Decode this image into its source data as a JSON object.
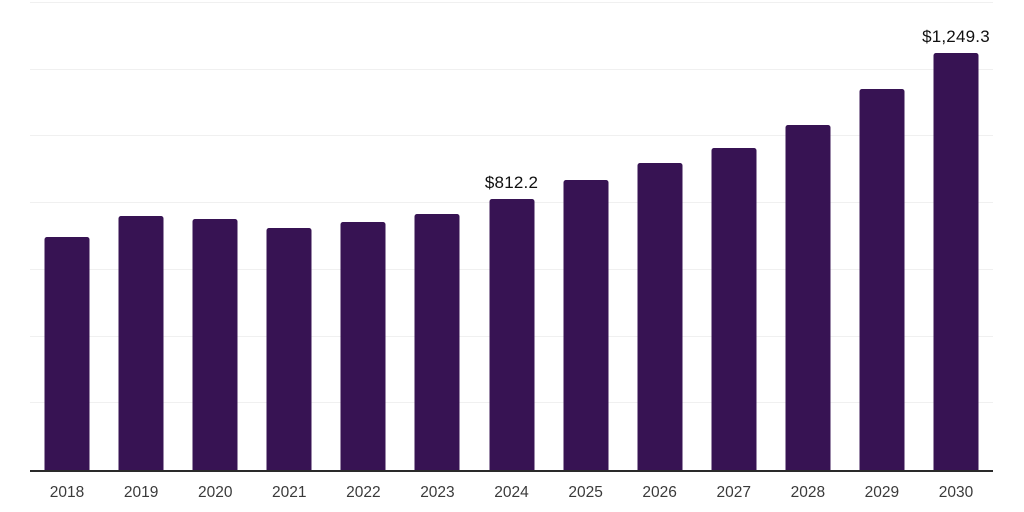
{
  "page": {
    "background": "#ffffff"
  },
  "chart_data": {
    "type": "bar",
    "title": "",
    "xlabel": "",
    "ylabel": "",
    "categories": [
      "2018",
      "2019",
      "2020",
      "2021",
      "2022",
      "2023",
      "2024",
      "2025",
      "2026",
      "2027",
      "2028",
      "2029",
      "2030"
    ],
    "values": [
      699,
      762,
      753,
      725,
      743,
      768,
      812.2,
      870,
      920,
      965,
      1035,
      1142,
      1249.3
    ],
    "value_labels": [
      {
        "index": 6,
        "category": "2024",
        "text": "$812.2"
      },
      {
        "index": 12,
        "category": "2030",
        "text": "$1,249.3"
      }
    ],
    "ylim": [
      0,
      1400
    ],
    "gridline_interval": 200,
    "grid": true,
    "legend": false,
    "y_axis_labels_shown": false,
    "colors": {
      "bar": "#371353",
      "gridline": "#f0f0f0",
      "axis_line": "#2a2a2a",
      "tick_label": "#3a3a3a",
      "value_label": "#101010",
      "background": "#ffffff"
    }
  }
}
